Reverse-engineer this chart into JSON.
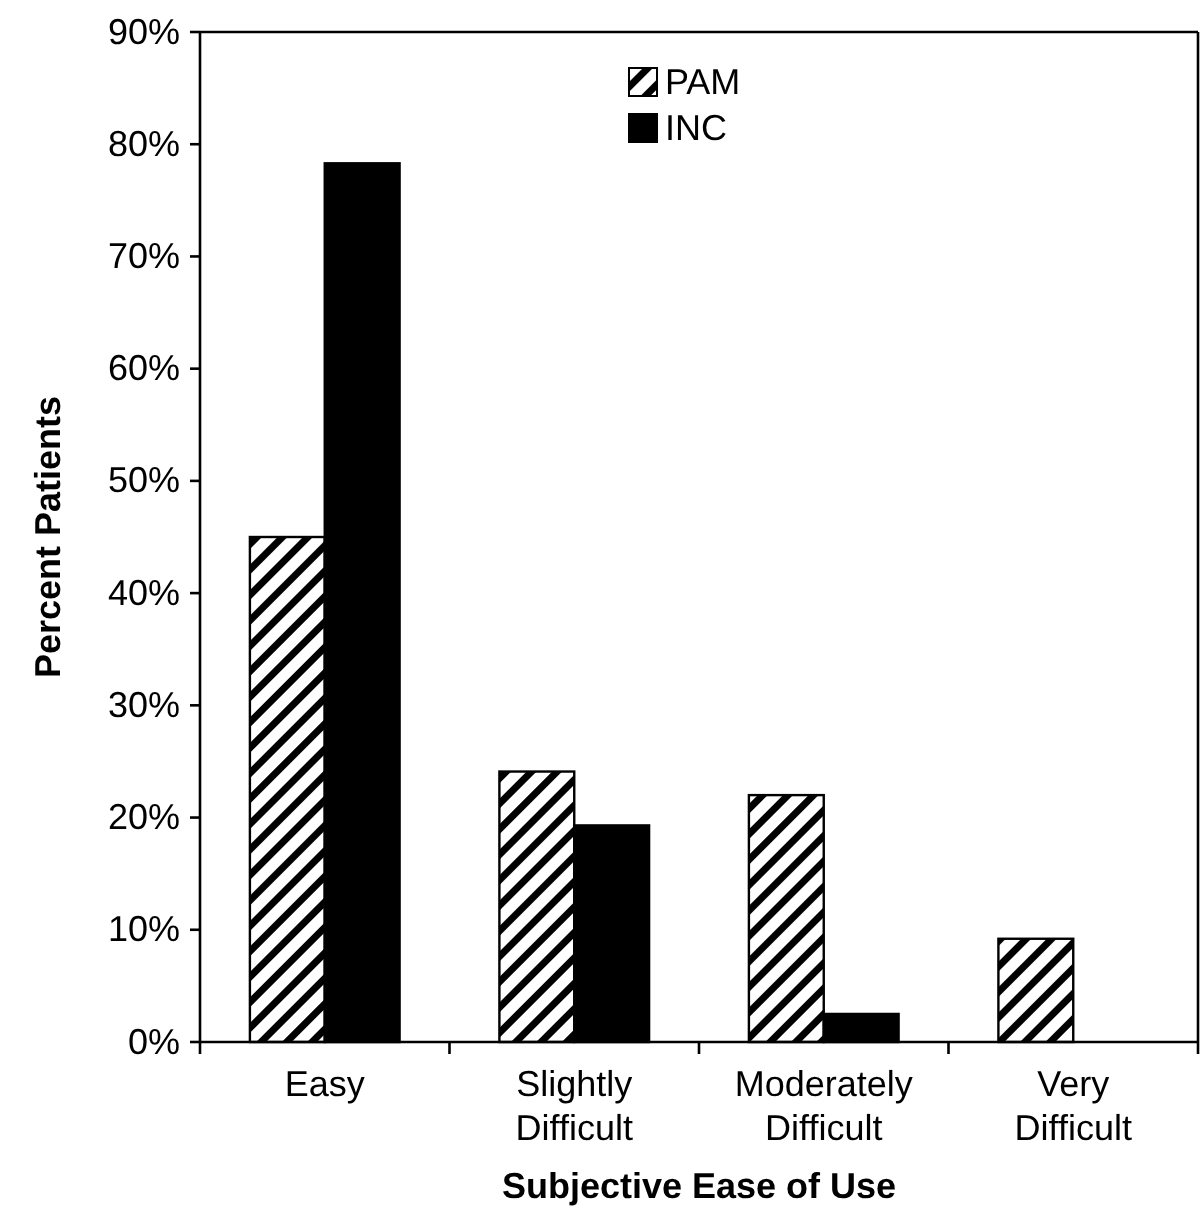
{
  "chart_data": {
    "type": "bar",
    "xlabel": "Subjective Ease of Use",
    "ylabel": "Percent Patients",
    "categories": [
      "Easy",
      "Slightly Difficult",
      "Moderately Difficult",
      "Very Difficult"
    ],
    "series": [
      {
        "name": "PAM",
        "color": "#000000",
        "values": [
          45,
          24.1,
          22,
          9.2
        ]
      },
      {
        "name": "INC",
        "color": "#000000",
        "values": [
          78.3,
          19.3,
          2.5,
          0
        ]
      }
    ],
    "ylim": [
      0,
      90
    ],
    "yticks": [
      {
        "value": 0,
        "label": "0%"
      },
      {
        "value": 10,
        "label": "10%"
      },
      {
        "value": 20,
        "label": "20%"
      },
      {
        "value": 30,
        "label": "30%"
      },
      {
        "value": 40,
        "label": "40%"
      },
      {
        "value": 50,
        "label": "50%"
      },
      {
        "value": 60,
        "label": "60%"
      },
      {
        "value": 70,
        "label": "70%"
      },
      {
        "value": 80,
        "label": "80%"
      },
      {
        "value": 90,
        "label": "90%"
      }
    ],
    "grid": false,
    "legend": "top"
  }
}
